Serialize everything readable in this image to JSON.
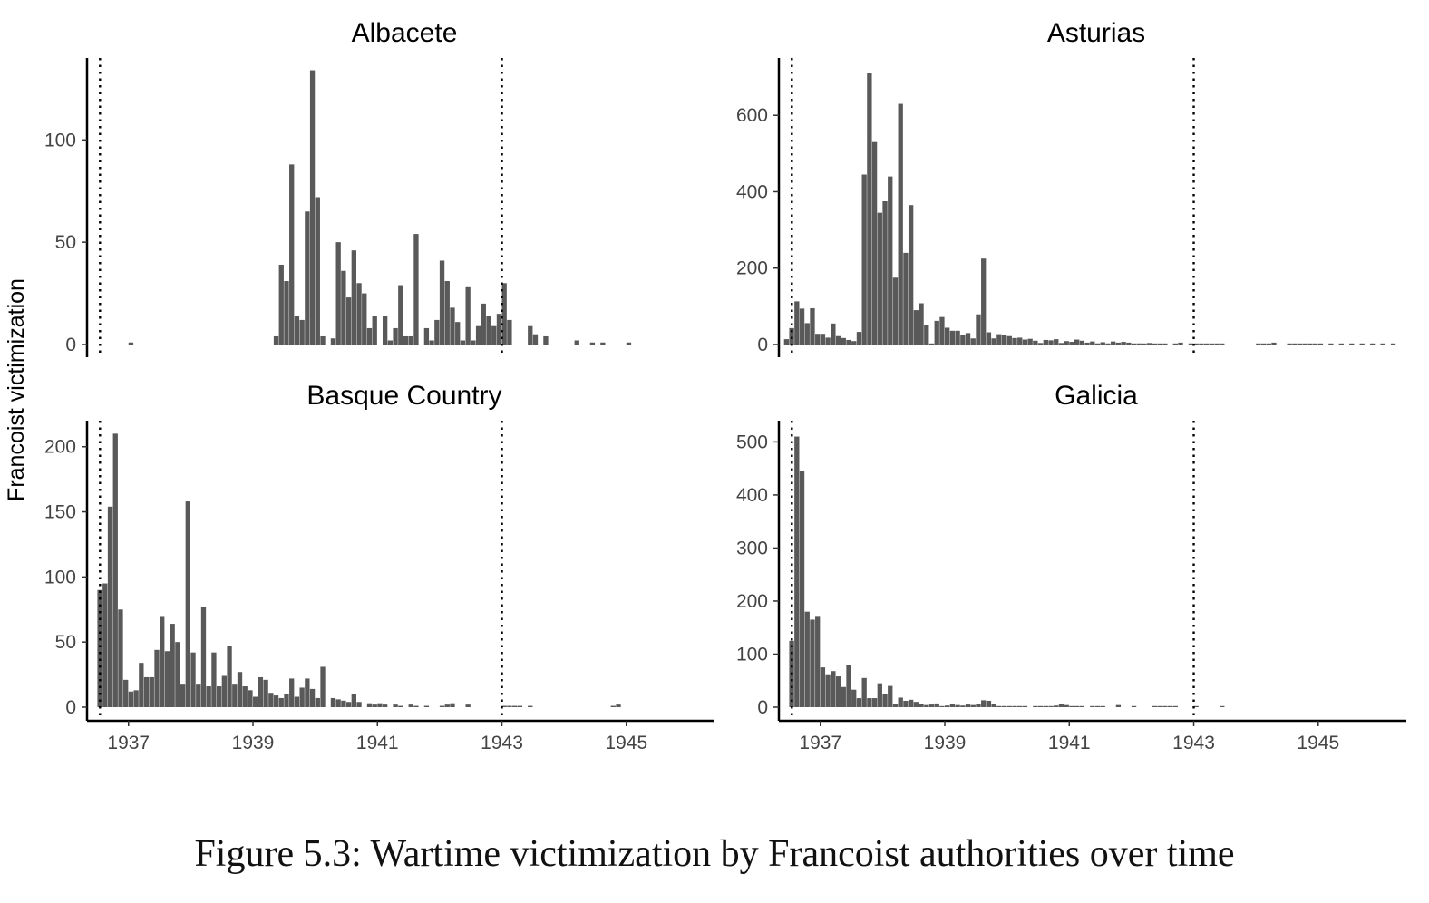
{
  "figure": {
    "caption": "Figure 5.3: Wartime victimization by Francoist authorities over time",
    "y_axis_label": "Francoist victimization",
    "x_tick_labels": [
      "1937",
      "1939",
      "1941",
      "1943",
      "1945"
    ],
    "bar_color": "#595959",
    "reference_line_dates": [
      "1936-07",
      "1943-01"
    ],
    "reference_line_style": "dotted"
  },
  "chart_data": [
    {
      "type": "bar",
      "title": "Albacete",
      "x_unit": "month",
      "x_range": [
        "1936-05",
        "1946-06"
      ],
      "ylim": [
        0,
        140
      ],
      "y_ticks": [
        0,
        50,
        100
      ],
      "grid": false,
      "x": [
        "1937-01",
        "1939-05",
        "1939-06",
        "1939-07",
        "1939-08",
        "1939-09",
        "1939-10",
        "1939-11",
        "1939-12",
        "1940-01",
        "1940-02",
        "1940-04",
        "1940-05",
        "1940-06",
        "1940-07",
        "1940-08",
        "1940-09",
        "1940-10",
        "1940-11",
        "1940-12",
        "1941-02",
        "1941-03",
        "1941-04",
        "1941-05",
        "1941-06",
        "1941-07",
        "1941-08",
        "1941-10",
        "1941-11",
        "1941-12",
        "1942-01",
        "1942-02",
        "1942-03",
        "1942-04",
        "1942-05",
        "1942-06",
        "1942-07",
        "1942-08",
        "1942-09",
        "1942-10",
        "1942-11",
        "1942-12",
        "1943-01",
        "1943-02",
        "1943-06",
        "1943-07",
        "1943-09",
        "1944-03",
        "1944-06",
        "1944-08",
        "1945-01"
      ],
      "values": [
        1,
        4,
        39,
        31,
        88,
        14,
        12,
        65,
        134,
        72,
        4,
        3,
        50,
        36,
        23,
        46,
        30,
        25,
        8,
        14,
        14,
        2,
        8,
        29,
        4,
        4,
        54,
        8,
        2,
        12,
        41,
        31,
        18,
        11,
        2,
        28,
        2,
        9,
        20,
        14,
        9,
        15,
        30,
        12,
        9,
        5,
        4,
        2,
        1,
        1,
        1
      ]
    },
    {
      "type": "bar",
      "title": "Asturias",
      "x_unit": "month",
      "x_range": [
        "1936-05",
        "1946-06"
      ],
      "ylim": [
        0,
        750
      ],
      "y_ticks": [
        0,
        200,
        400,
        600
      ],
      "grid": false,
      "x": [
        "1936-06",
        "1936-07",
        "1936-08",
        "1936-09",
        "1936-10",
        "1936-11",
        "1936-12",
        "1937-01",
        "1937-02",
        "1937-03",
        "1937-04",
        "1937-05",
        "1937-06",
        "1937-07",
        "1937-08",
        "1937-09",
        "1937-10",
        "1937-11",
        "1937-12",
        "1938-01",
        "1938-02",
        "1938-03",
        "1938-04",
        "1938-05",
        "1938-06",
        "1938-07",
        "1938-08",
        "1938-09",
        "1938-10",
        "1938-11",
        "1938-12",
        "1939-01",
        "1939-02",
        "1939-03",
        "1939-04",
        "1939-05",
        "1939-06",
        "1939-07",
        "1939-08",
        "1939-09",
        "1939-10",
        "1939-11",
        "1939-12",
        "1940-01",
        "1940-02",
        "1940-03",
        "1940-04",
        "1940-05",
        "1940-06",
        "1940-07",
        "1940-08",
        "1940-09",
        "1940-10",
        "1940-11",
        "1940-12",
        "1941-01",
        "1941-02",
        "1941-03",
        "1941-04",
        "1941-05",
        "1941-06",
        "1941-07",
        "1941-08",
        "1941-09",
        "1941-10",
        "1941-11",
        "1941-12",
        "1942-01",
        "1942-02",
        "1942-03",
        "1942-04",
        "1942-05",
        "1942-06",
        "1942-07",
        "1942-09",
        "1942-10",
        "1942-12",
        "1943-01",
        "1943-02",
        "1943-03",
        "1943-04",
        "1943-05",
        "1943-06",
        "1944-01",
        "1944-02",
        "1944-03",
        "1944-04",
        "1944-07",
        "1944-08",
        "1944-09",
        "1944-10",
        "1944-11",
        "1944-12",
        "1945-01",
        "1945-03",
        "1945-05",
        "1945-07",
        "1945-09",
        "1945-11",
        "1946-01",
        "1946-03"
      ],
      "values": [
        14,
        43,
        113,
        94,
        56,
        95,
        28,
        28,
        18,
        55,
        22,
        17,
        12,
        9,
        33,
        445,
        710,
        530,
        345,
        375,
        440,
        175,
        630,
        240,
        365,
        90,
        108,
        52,
        2,
        62,
        72,
        44,
        36,
        36,
        24,
        30,
        16,
        79,
        225,
        32,
        16,
        27,
        25,
        22,
        17,
        18,
        13,
        15,
        10,
        4,
        12,
        11,
        14,
        4,
        9,
        7,
        13,
        10,
        5,
        8,
        3,
        6,
        3,
        8,
        5,
        7,
        5,
        2,
        3,
        2,
        4,
        1,
        2,
        1,
        1,
        5,
        3,
        2,
        1,
        1,
        2,
        1,
        1,
        1,
        1,
        1,
        5,
        2,
        1,
        1,
        2,
        1,
        2,
        1,
        1,
        1,
        1,
        1,
        1,
        1,
        1
      ]
    },
    {
      "type": "bar",
      "title": "Basque Country",
      "x_unit": "month",
      "x_range": [
        "1936-05",
        "1946-06"
      ],
      "ylim": [
        0,
        220
      ],
      "y_ticks": [
        0,
        50,
        100,
        150,
        200
      ],
      "grid": false,
      "x": [
        "1936-07",
        "1936-08",
        "1936-09",
        "1936-10",
        "1936-11",
        "1936-12",
        "1937-01",
        "1937-02",
        "1937-03",
        "1937-04",
        "1937-05",
        "1937-06",
        "1937-07",
        "1937-08",
        "1937-09",
        "1937-10",
        "1937-11",
        "1937-12",
        "1938-01",
        "1938-02",
        "1938-03",
        "1938-04",
        "1938-05",
        "1938-06",
        "1938-07",
        "1938-08",
        "1938-09",
        "1938-10",
        "1938-11",
        "1938-12",
        "1939-01",
        "1939-02",
        "1939-03",
        "1939-04",
        "1939-05",
        "1939-06",
        "1939-07",
        "1939-08",
        "1939-09",
        "1939-10",
        "1939-11",
        "1939-12",
        "1940-01",
        "1940-02",
        "1940-04",
        "1940-05",
        "1940-06",
        "1940-07",
        "1940-08",
        "1940-09",
        "1940-11",
        "1940-12",
        "1941-01",
        "1941-02",
        "1941-04",
        "1941-05",
        "1941-07",
        "1941-08",
        "1941-10",
        "1942-01",
        "1942-02",
        "1942-03",
        "1942-06",
        "1943-01",
        "1943-02",
        "1943-03",
        "1943-04",
        "1943-06",
        "1944-10",
        "1944-11"
      ],
      "values": [
        90,
        95,
        154,
        210,
        75,
        21,
        12,
        13,
        34,
        23,
        23,
        44,
        70,
        43,
        64,
        50,
        18,
        158,
        42,
        18,
        77,
        16,
        42,
        16,
        24,
        47,
        18,
        27,
        16,
        13,
        8,
        23,
        21,
        11,
        9,
        7,
        10,
        22,
        8,
        15,
        22,
        14,
        7,
        31,
        7,
        6,
        5,
        4,
        10,
        4,
        3,
        2,
        3,
        2,
        2,
        1,
        2,
        1,
        1,
        1,
        2,
        3,
        2,
        1,
        1,
        1,
        1,
        1,
        1,
        2
      ]
    },
    {
      "type": "bar",
      "title": "Galicia",
      "x_unit": "month",
      "x_range": [
        "1936-05",
        "1946-06"
      ],
      "ylim": [
        0,
        540
      ],
      "y_ticks": [
        0,
        100,
        200,
        300,
        400,
        500
      ],
      "grid": false,
      "x": [
        "1936-07",
        "1936-08",
        "1936-09",
        "1936-10",
        "1936-11",
        "1936-12",
        "1937-01",
        "1937-02",
        "1937-03",
        "1937-04",
        "1937-05",
        "1937-06",
        "1937-07",
        "1937-08",
        "1937-09",
        "1937-10",
        "1937-11",
        "1937-12",
        "1938-01",
        "1938-02",
        "1938-03",
        "1938-04",
        "1938-05",
        "1938-06",
        "1938-07",
        "1938-08",
        "1938-09",
        "1938-10",
        "1938-11",
        "1938-12",
        "1939-01",
        "1939-02",
        "1939-03",
        "1939-04",
        "1939-05",
        "1939-06",
        "1939-07",
        "1939-08",
        "1939-09",
        "1939-10",
        "1939-11",
        "1939-12",
        "1940-01",
        "1940-02",
        "1940-03",
        "1940-04",
        "1940-06",
        "1940-07",
        "1940-08",
        "1940-09",
        "1940-10",
        "1940-11",
        "1940-12",
        "1941-01",
        "1941-02",
        "1941-03",
        "1941-05",
        "1941-06",
        "1941-07",
        "1941-10",
        "1942-01",
        "1942-05",
        "1942-06",
        "1942-07",
        "1942-08",
        "1942-09",
        "1943-01",
        "1943-06"
      ],
      "values": [
        125,
        510,
        445,
        180,
        165,
        172,
        75,
        62,
        68,
        58,
        38,
        80,
        33,
        17,
        55,
        17,
        17,
        45,
        25,
        40,
        6,
        18,
        12,
        14,
        10,
        6,
        4,
        5,
        7,
        2,
        3,
        6,
        4,
        3,
        5,
        4,
        6,
        13,
        12,
        6,
        2,
        1,
        1,
        1,
        1,
        1,
        1,
        1,
        1,
        1,
        3,
        6,
        4,
        2,
        2,
        1,
        1,
        1,
        1,
        4,
        1,
        1,
        1,
        1,
        1,
        1,
        1,
        1
      ]
    }
  ]
}
